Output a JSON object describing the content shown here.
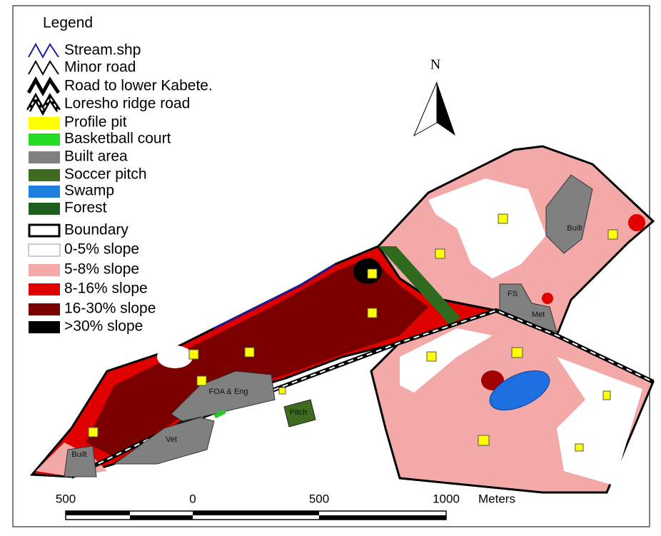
{
  "legend": {
    "title": "Legend",
    "items": [
      {
        "label": "Stream.shp"
      },
      {
        "label": "Minor road"
      },
      {
        "label": "Road to lower Kabete."
      },
      {
        "label": "Loresho ridge road"
      },
      {
        "label": "Profile pit"
      },
      {
        "label": "Basketball court"
      },
      {
        "label": "Built area"
      },
      {
        "label": "Soccer pitch"
      },
      {
        "label": "Swamp"
      },
      {
        "label": "Forest"
      },
      {
        "label": "Boundary"
      },
      {
        "label": "0-5% slope"
      },
      {
        "label": "5-8% slope"
      },
      {
        "label": "8-16% slope"
      },
      {
        "label": "16-30% slope"
      },
      {
        "label": ">30% slope"
      }
    ]
  },
  "north": "N",
  "map": {
    "labels": [
      "Built",
      "FS",
      "Met",
      "FOA & Eng",
      "Pitch",
      "Vet",
      "Built"
    ]
  },
  "scale": {
    "labels": [
      "500",
      "0",
      "500",
      "1000"
    ],
    "unit": "Meters"
  }
}
